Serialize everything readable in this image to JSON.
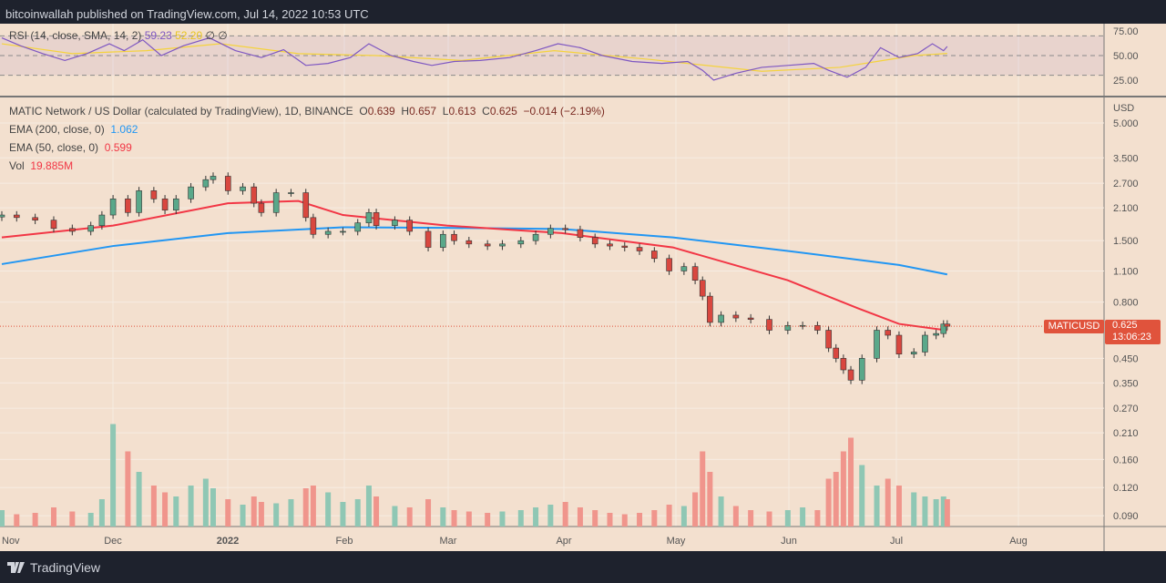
{
  "header": {
    "published": "bitcoinwallah published on TradingView.com, Jul 14, 2022 10:53 UTC"
  },
  "footer": {
    "brand": "TradingView"
  },
  "colors": {
    "background": "#f3e0cf",
    "up": "#26a69a",
    "down": "#ef5350",
    "ema200": "#2196f3",
    "ema50": "#f23645",
    "rsi": "#7e57c2",
    "rsi_sma": "#f5d33c",
    "last_price": "#e0533c"
  },
  "legend": {
    "rsi": {
      "label": "RSI (14, close, SMA, 14, 2)",
      "value": "59.23",
      "sma_value": "52.20",
      "extra": "∅ ∅"
    },
    "symbol": {
      "label": "MATIC Network / US Dollar (calculated by TradingView), 1D, BINANCE",
      "o_label": "O",
      "o": "0.639",
      "h_label": "H",
      "h": "0.657",
      "l_label": "L",
      "l": "0.613",
      "c_label": "C",
      "c": "0.625",
      "change": "−0.014 (−2.19%)"
    },
    "ema200": {
      "label": "EMA (200, close, 0)",
      "value": "1.062"
    },
    "ema50": {
      "label": "EMA (50, close, 0)",
      "value": "0.599"
    },
    "vol": {
      "label": "Vol",
      "value": "19.885M"
    }
  },
  "price_tag": {
    "symbol": "MATICUSD",
    "price": "0.625",
    "countdown": "13:06:23"
  },
  "chart_data": [
    {
      "type": "candlestick",
      "name": "MATICUSD",
      "yscale": "log",
      "unit": "USD",
      "yticks": [
        "5.000",
        "3.500",
        "2.700",
        "2.100",
        "1.500",
        "1.100",
        "0.800",
        "0.450",
        "0.350",
        "0.270",
        "0.210",
        "0.160",
        "0.120",
        "0.090"
      ],
      "xticks": [
        "Nov",
        "Dec",
        "2022",
        "Feb",
        "Mar",
        "Apr",
        "May",
        "Jun",
        "Jul",
        "Aug"
      ],
      "close": [
        [
          "2021-11-01",
          1.95
        ],
        [
          "2021-11-05",
          1.9
        ],
        [
          "2021-11-10",
          1.85
        ],
        [
          "2021-11-15",
          1.7
        ],
        [
          "2021-11-20",
          1.65
        ],
        [
          "2021-11-25",
          1.75
        ],
        [
          "2021-11-28",
          1.95
        ],
        [
          "2021-12-01",
          2.3
        ],
        [
          "2021-12-05",
          2.0
        ],
        [
          "2021-12-08",
          2.5
        ],
        [
          "2021-12-12",
          2.3
        ],
        [
          "2021-12-15",
          2.05
        ],
        [
          "2021-12-18",
          2.3
        ],
        [
          "2021-12-22",
          2.6
        ],
        [
          "2021-12-26",
          2.8
        ],
        [
          "2021-12-28",
          2.9
        ],
        [
          "2022-01-01",
          2.5
        ],
        [
          "2022-01-05",
          2.6
        ],
        [
          "2022-01-08",
          2.2
        ],
        [
          "2022-01-10",
          2.0
        ],
        [
          "2022-01-14",
          2.45
        ],
        [
          "2022-01-18",
          2.45
        ],
        [
          "2022-01-22",
          1.9
        ],
        [
          "2022-01-24",
          1.6
        ],
        [
          "2022-01-28",
          1.65
        ],
        [
          "2022-02-01",
          1.65
        ],
        [
          "2022-02-05",
          1.8
        ],
        [
          "2022-02-08",
          2.0
        ],
        [
          "2022-02-10",
          1.75
        ],
        [
          "2022-02-15",
          1.85
        ],
        [
          "2022-02-19",
          1.65
        ],
        [
          "2022-02-24",
          1.4
        ],
        [
          "2022-02-28",
          1.6
        ],
        [
          "2022-03-03",
          1.5
        ],
        [
          "2022-03-07",
          1.45
        ],
        [
          "2022-03-12",
          1.42
        ],
        [
          "2022-03-16",
          1.45
        ],
        [
          "2022-03-21",
          1.5
        ],
        [
          "2022-03-25",
          1.6
        ],
        [
          "2022-03-29",
          1.7
        ],
        [
          "2022-04-02",
          1.68
        ],
        [
          "2022-04-06",
          1.55
        ],
        [
          "2022-04-10",
          1.45
        ],
        [
          "2022-04-14",
          1.42
        ],
        [
          "2022-04-18",
          1.4
        ],
        [
          "2022-04-22",
          1.35
        ],
        [
          "2022-04-26",
          1.25
        ],
        [
          "2022-04-30",
          1.1
        ],
        [
          "2022-05-04",
          1.15
        ],
        [
          "2022-05-07",
          1.0
        ],
        [
          "2022-05-09",
          0.85
        ],
        [
          "2022-05-11",
          0.65
        ],
        [
          "2022-05-14",
          0.7
        ],
        [
          "2022-05-18",
          0.68
        ],
        [
          "2022-05-22",
          0.67
        ],
        [
          "2022-05-27",
          0.6
        ],
        [
          "2022-06-01",
          0.63
        ],
        [
          "2022-06-05",
          0.63
        ],
        [
          "2022-06-09",
          0.6
        ],
        [
          "2022-06-12",
          0.5
        ],
        [
          "2022-06-14",
          0.45
        ],
        [
          "2022-06-16",
          0.4
        ],
        [
          "2022-06-18",
          0.36
        ],
        [
          "2022-06-21",
          0.45
        ],
        [
          "2022-06-25",
          0.6
        ],
        [
          "2022-06-28",
          0.57
        ],
        [
          "2022-07-01",
          0.47
        ],
        [
          "2022-07-05",
          0.48
        ],
        [
          "2022-07-08",
          0.57
        ],
        [
          "2022-07-11",
          0.58
        ],
        [
          "2022-07-13",
          0.639
        ],
        [
          "2022-07-14",
          0.625
        ]
      ],
      "volume_m": [
        12,
        9,
        10,
        14,
        11,
        10,
        20,
        75,
        55,
        40,
        30,
        25,
        22,
        30,
        35,
        28,
        20,
        16,
        22,
        18,
        17,
        20,
        28,
        30,
        25,
        18,
        20,
        30,
        22,
        15,
        14,
        20,
        14,
        12,
        11,
        10,
        11,
        12,
        14,
        16,
        18,
        14,
        12,
        10,
        9,
        10,
        12,
        16,
        15,
        25,
        55,
        40,
        22,
        15,
        12,
        11,
        12,
        14,
        12,
        35,
        40,
        55,
        65,
        45,
        30,
        35,
        30,
        25,
        22,
        20,
        22,
        20
      ],
      "ema200": [
        [
          "2021-11-01",
          1.18
        ],
        [
          "2021-12-01",
          1.42
        ],
        [
          "2022-01-01",
          1.62
        ],
        [
          "2022-02-01",
          1.72
        ],
        [
          "2022-03-01",
          1.71
        ],
        [
          "2022-04-01",
          1.69
        ],
        [
          "2022-05-01",
          1.55
        ],
        [
          "2022-06-01",
          1.35
        ],
        [
          "2022-07-01",
          1.17
        ],
        [
          "2022-07-14",
          1.062
        ]
      ],
      "ema50": [
        [
          "2021-11-01",
          1.55
        ],
        [
          "2021-12-01",
          1.75
        ],
        [
          "2022-01-01",
          2.2
        ],
        [
          "2022-01-20",
          2.25
        ],
        [
          "2022-02-01",
          1.95
        ],
        [
          "2022-03-01",
          1.75
        ],
        [
          "2022-04-01",
          1.62
        ],
        [
          "2022-05-01",
          1.4
        ],
        [
          "2022-06-01",
          1.0
        ],
        [
          "2022-06-20",
          0.75
        ],
        [
          "2022-07-01",
          0.64
        ],
        [
          "2022-07-14",
          0.599
        ]
      ]
    },
    {
      "type": "line",
      "name": "RSI",
      "ylim": [
        0,
        100
      ],
      "yticks": [
        "75.00",
        "50.00",
        "25.00"
      ],
      "bands": [
        30,
        50,
        70
      ],
      "rsi": [
        [
          "2021-11-01",
          68
        ],
        [
          "2021-11-06",
          60
        ],
        [
          "2021-11-12",
          52
        ],
        [
          "2021-11-18",
          45
        ],
        [
          "2021-11-24",
          52
        ],
        [
          "2021-11-30",
          62
        ],
        [
          "2021-12-04",
          55
        ],
        [
          "2021-12-09",
          66
        ],
        [
          "2021-12-14",
          50
        ],
        [
          "2021-12-20",
          60
        ],
        [
          "2021-12-27",
          68
        ],
        [
          "2022-01-03",
          55
        ],
        [
          "2022-01-10",
          48
        ],
        [
          "2022-01-16",
          56
        ],
        [
          "2022-01-22",
          40
        ],
        [
          "2022-01-28",
          42
        ],
        [
          "2022-02-03",
          48
        ],
        [
          "2022-02-08",
          62
        ],
        [
          "2022-02-14",
          50
        ],
        [
          "2022-02-20",
          44
        ],
        [
          "2022-02-25",
          40
        ],
        [
          "2022-03-03",
          44
        ],
        [
          "2022-03-10",
          45
        ],
        [
          "2022-03-18",
          48
        ],
        [
          "2022-03-25",
          55
        ],
        [
          "2022-03-31",
          62
        ],
        [
          "2022-04-06",
          58
        ],
        [
          "2022-04-12",
          50
        ],
        [
          "2022-04-20",
          44
        ],
        [
          "2022-04-28",
          42
        ],
        [
          "2022-05-05",
          44
        ],
        [
          "2022-05-09",
          35
        ],
        [
          "2022-05-12",
          25
        ],
        [
          "2022-05-18",
          32
        ],
        [
          "2022-05-25",
          38
        ],
        [
          "2022-06-01",
          40
        ],
        [
          "2022-06-08",
          42
        ],
        [
          "2022-06-12",
          35
        ],
        [
          "2022-06-17",
          28
        ],
        [
          "2022-06-22",
          38
        ],
        [
          "2022-06-26",
          58
        ],
        [
          "2022-07-01",
          48
        ],
        [
          "2022-07-06",
          52
        ],
        [
          "2022-07-10",
          62
        ],
        [
          "2022-07-13",
          55
        ],
        [
          "2022-07-14",
          59.23
        ]
      ],
      "sma": [
        [
          "2021-11-01",
          62
        ],
        [
          "2021-11-20",
          52
        ],
        [
          "2021-12-10",
          55
        ],
        [
          "2021-12-30",
          62
        ],
        [
          "2022-01-20",
          52
        ],
        [
          "2022-02-10",
          50
        ],
        [
          "2022-03-05",
          45
        ],
        [
          "2022-03-30",
          55
        ],
        [
          "2022-04-25",
          46
        ],
        [
          "2022-05-25",
          34
        ],
        [
          "2022-06-15",
          38
        ],
        [
          "2022-06-25",
          44
        ],
        [
          "2022-07-05",
          50
        ],
        [
          "2022-07-14",
          52.2
        ]
      ]
    }
  ]
}
